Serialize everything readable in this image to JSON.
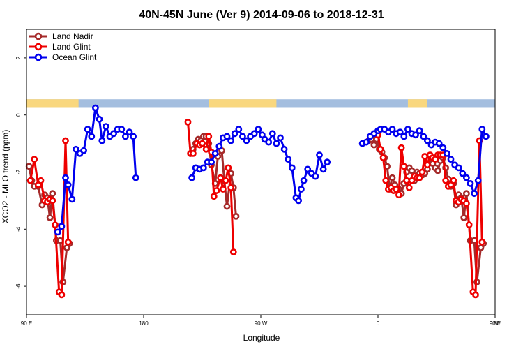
{
  "chart_data": {
    "type": "line",
    "title": "40N-45N June (Ver 9)   2014-09-06 to 2018-12-31",
    "xlabel": "Longitude",
    "ylabel": "XCO2 - MLO trend (ppm)",
    "xlim": [
      90,
      450
    ],
    "ylim": [
      -7,
      3
    ],
    "x_ticks": [
      {
        "value": 90,
        "label": "90 E"
      },
      {
        "value": 180,
        "label": "180"
      },
      {
        "value": 270,
        "label": "90 W"
      },
      {
        "value": 360,
        "label": "0"
      },
      {
        "value": 450,
        "label": "90 E"
      }
    ],
    "x_ticks_upper": [
      {
        "value": 450,
        "label": "180"
      }
    ],
    "y_ticks": [
      {
        "value": -6,
        "label": "-6"
      },
      {
        "value": -4,
        "label": "-4"
      },
      {
        "value": -2,
        "label": "-2"
      },
      {
        "value": 0,
        "label": "0"
      },
      {
        "value": 2,
        "label": "2"
      }
    ],
    "legend_position": "top-left",
    "land_mask_band": {
      "y_range": [
        0.25,
        0.55
      ],
      "land_color": "#f9d77e",
      "ocean_color": "#a4bedf",
      "land_segments": [
        [
          90,
          130
        ],
        [
          230,
          282
        ],
        [
          383,
          398
        ],
        [
          500,
          555
        ]
      ]
    },
    "series": [
      {
        "name": "Land Nadir",
        "color": "#a52a2a",
        "points": [
          [
            92,
            -1.8
          ],
          [
            94,
            -2.3
          ],
          [
            96,
            -2.5
          ],
          [
            99,
            -2.5
          ],
          [
            102,
            -3.15
          ],
          [
            104,
            -2.8
          ],
          [
            106,
            -2.9
          ],
          [
            108,
            -3.6
          ],
          [
            110,
            -2.75
          ],
          [
            113,
            -4.4
          ],
          [
            116,
            -4.4
          ],
          [
            118,
            -5.85
          ],
          [
            121,
            -4.65
          ],
          [
            123,
            -4.5
          ],
          [
            216,
            -1.35
          ],
          [
            218,
            -1.2
          ],
          [
            220,
            -1.0
          ],
          [
            222,
            -0.85
          ],
          [
            224,
            -0.9
          ],
          [
            226,
            -0.75
          ],
          [
            228,
            -0.75
          ],
          [
            230,
            -1.0
          ],
          [
            232,
            -1.75
          ],
          [
            235,
            -2.4
          ],
          [
            237,
            -1.45
          ],
          [
            240,
            -1.25
          ],
          [
            242,
            -2.3
          ],
          [
            244,
            -3.2
          ],
          [
            247,
            -2.05
          ],
          [
            249,
            -2.55
          ],
          [
            251,
            -3.55
          ],
          [
            353,
            -0.9
          ],
          [
            355,
            -0.85
          ],
          [
            357,
            -1.05
          ],
          [
            359,
            -0.85
          ],
          [
            361,
            -1.2
          ],
          [
            363,
            -1.3
          ],
          [
            365,
            -1.5
          ],
          [
            367,
            -1.8
          ],
          [
            369,
            -2.6
          ],
          [
            371,
            -2.2
          ],
          [
            373,
            -2.45
          ],
          [
            376,
            -2.6
          ],
          [
            378,
            -2.75
          ],
          [
            380,
            -2.4
          ],
          [
            382,
            -2.0
          ],
          [
            384,
            -1.85
          ],
          [
            386,
            -1.95
          ],
          [
            388,
            -2.3
          ],
          [
            390,
            -2.0
          ],
          [
            392,
            -2.05
          ],
          [
            394,
            -2.1
          ],
          [
            396,
            -2.05
          ],
          [
            398,
            -1.9
          ],
          [
            400,
            -1.45
          ],
          [
            402,
            -1.7
          ],
          [
            404,
            -1.85
          ],
          [
            406,
            -1.95
          ],
          [
            408,
            -1.6
          ],
          [
            410,
            -1.5
          ],
          [
            412,
            -1.85
          ],
          [
            414,
            -2.25
          ],
          [
            416,
            -2.5
          ],
          [
            418,
            -2.4
          ],
          [
            420,
            -3.15
          ],
          [
            422,
            -2.8
          ],
          [
            424,
            -2.9
          ],
          [
            426,
            -3.6
          ],
          [
            428,
            -2.75
          ],
          [
            431,
            -4.4
          ],
          [
            434,
            -4.4
          ],
          [
            436,
            -5.85
          ],
          [
            439,
            -4.65
          ],
          [
            441,
            -4.5
          ]
        ]
      },
      {
        "name": "Land Glint",
        "color": "#ee0000",
        "points": [
          [
            93,
            -2.3
          ],
          [
            96,
            -1.55
          ],
          [
            99,
            -2.45
          ],
          [
            101,
            -2.3
          ],
          [
            104,
            -3.0
          ],
          [
            106,
            -3.05
          ],
          [
            108,
            -2.95
          ],
          [
            110,
            -3.0
          ],
          [
            112,
            -3.85
          ],
          [
            115,
            -6.2
          ],
          [
            117,
            -6.3
          ],
          [
            120,
            -0.9
          ],
          [
            122,
            -4.45
          ],
          [
            214,
            -0.25
          ],
          [
            216,
            -1.35
          ],
          [
            218,
            -1.35
          ],
          [
            221,
            -1.0
          ],
          [
            223,
            -1.05
          ],
          [
            225,
            -1.0
          ],
          [
            228,
            -1.2
          ],
          [
            230,
            -0.75
          ],
          [
            232,
            -1.3
          ],
          [
            234,
            -2.85
          ],
          [
            236,
            -2.65
          ],
          [
            239,
            -2.2
          ],
          [
            241,
            -2.6
          ],
          [
            243,
            -2.3
          ],
          [
            245,
            -1.85
          ],
          [
            247,
            -2.55
          ],
          [
            249,
            -4.8
          ],
          [
            360,
            -0.7
          ],
          [
            362,
            -1.2
          ],
          [
            364,
            -1.5
          ],
          [
            366,
            -2.3
          ],
          [
            368,
            -2.6
          ],
          [
            370,
            -2.55
          ],
          [
            372,
            -2.65
          ],
          [
            374,
            -2.6
          ],
          [
            376,
            -2.8
          ],
          [
            378,
            -1.15
          ],
          [
            380,
            -1.8
          ],
          [
            382,
            -2.3
          ],
          [
            384,
            -2.55
          ],
          [
            386,
            -2.3
          ],
          [
            388,
            -2.15
          ],
          [
            390,
            -2.2
          ],
          [
            392,
            -2.2
          ],
          [
            394,
            -2.0
          ],
          [
            396,
            -1.45
          ],
          [
            398,
            -1.75
          ],
          [
            400,
            -1.4
          ],
          [
            402,
            -1.5
          ],
          [
            404,
            -1.55
          ],
          [
            406,
            -1.4
          ],
          [
            408,
            -1.4
          ],
          [
            410,
            -1.4
          ],
          [
            412,
            -2.3
          ],
          [
            414,
            -2.5
          ],
          [
            416,
            -2.45
          ],
          [
            418,
            -2.3
          ],
          [
            420,
            -3.0
          ],
          [
            422,
            -3.05
          ],
          [
            424,
            -2.95
          ],
          [
            426,
            -3.0
          ],
          [
            428,
            -3.1
          ],
          [
            430,
            -3.85
          ],
          [
            433,
            -6.2
          ],
          [
            435,
            -6.3
          ],
          [
            438,
            -0.9
          ],
          [
            440,
            -4.45
          ]
        ]
      },
      {
        "name": "Ocean Glint",
        "color": "#0000ee",
        "points": [
          [
            114,
            -4.1
          ],
          [
            117,
            -3.9
          ],
          [
            120,
            -2.2
          ],
          [
            122,
            -2.45
          ],
          [
            125,
            -2.95
          ],
          [
            128,
            -1.2
          ],
          [
            131,
            -1.35
          ],
          [
            134,
            -1.25
          ],
          [
            137,
            -0.5
          ],
          [
            140,
            -0.75
          ],
          [
            143,
            0.25
          ],
          [
            146,
            -0.15
          ],
          [
            148,
            -0.9
          ],
          [
            151,
            -0.4
          ],
          [
            154,
            -0.75
          ],
          [
            157,
            -0.65
          ],
          [
            160,
            -0.5
          ],
          [
            163,
            -0.5
          ],
          [
            166,
            -0.75
          ],
          [
            169,
            -0.6
          ],
          [
            172,
            -0.75
          ],
          [
            174,
            -2.2
          ],
          [
            217,
            -2.2
          ],
          [
            220,
            -1.85
          ],
          [
            223,
            -1.9
          ],
          [
            226,
            -1.85
          ],
          [
            229,
            -1.65
          ],
          [
            232,
            -1.65
          ],
          [
            235,
            -1.35
          ],
          [
            238,
            -1.1
          ],
          [
            241,
            -0.8
          ],
          [
            244,
            -0.75
          ],
          [
            247,
            -0.9
          ],
          [
            250,
            -0.65
          ],
          [
            253,
            -0.5
          ],
          [
            256,
            -0.75
          ],
          [
            259,
            -0.9
          ],
          [
            262,
            -0.75
          ],
          [
            265,
            -0.65
          ],
          [
            268,
            -0.5
          ],
          [
            271,
            -0.7
          ],
          [
            273,
            -0.85
          ],
          [
            276,
            -0.95
          ],
          [
            279,
            -0.65
          ],
          [
            282,
            -1.0
          ],
          [
            285,
            -0.8
          ],
          [
            288,
            -1.2
          ],
          [
            291,
            -1.55
          ],
          [
            294,
            -1.85
          ],
          [
            297,
            -2.9
          ],
          [
            299,
            -3.0
          ],
          [
            301,
            -2.6
          ],
          [
            303,
            -2.3
          ],
          [
            306,
            -1.9
          ],
          [
            309,
            -2.05
          ],
          [
            312,
            -2.15
          ],
          [
            315,
            -1.4
          ],
          [
            318,
            -1.9
          ],
          [
            321,
            -1.65
          ],
          [
            348,
            -1.0
          ],
          [
            351,
            -0.95
          ],
          [
            354,
            -0.75
          ],
          [
            357,
            -0.65
          ],
          [
            360,
            -0.55
          ],
          [
            362,
            -0.5
          ],
          [
            365,
            -0.5
          ],
          [
            368,
            -0.6
          ],
          [
            371,
            -0.5
          ],
          [
            374,
            -0.65
          ],
          [
            377,
            -0.6
          ],
          [
            380,
            -0.75
          ],
          [
            383,
            -0.5
          ],
          [
            386,
            -0.65
          ],
          [
            389,
            -0.7
          ],
          [
            392,
            -0.55
          ],
          [
            395,
            -0.75
          ],
          [
            398,
            -0.9
          ],
          [
            401,
            -1.05
          ],
          [
            404,
            -0.95
          ],
          [
            407,
            -1.0
          ],
          [
            410,
            -1.15
          ],
          [
            413,
            -1.35
          ],
          [
            416,
            -1.55
          ],
          [
            419,
            -1.75
          ],
          [
            422,
            -1.85
          ],
          [
            425,
            -2.05
          ],
          [
            428,
            -2.2
          ],
          [
            431,
            -2.4
          ],
          [
            434,
            -2.75
          ],
          [
            437,
            -2.3
          ],
          [
            440,
            -0.5
          ],
          [
            443,
            -0.75
          ]
        ]
      }
    ]
  }
}
